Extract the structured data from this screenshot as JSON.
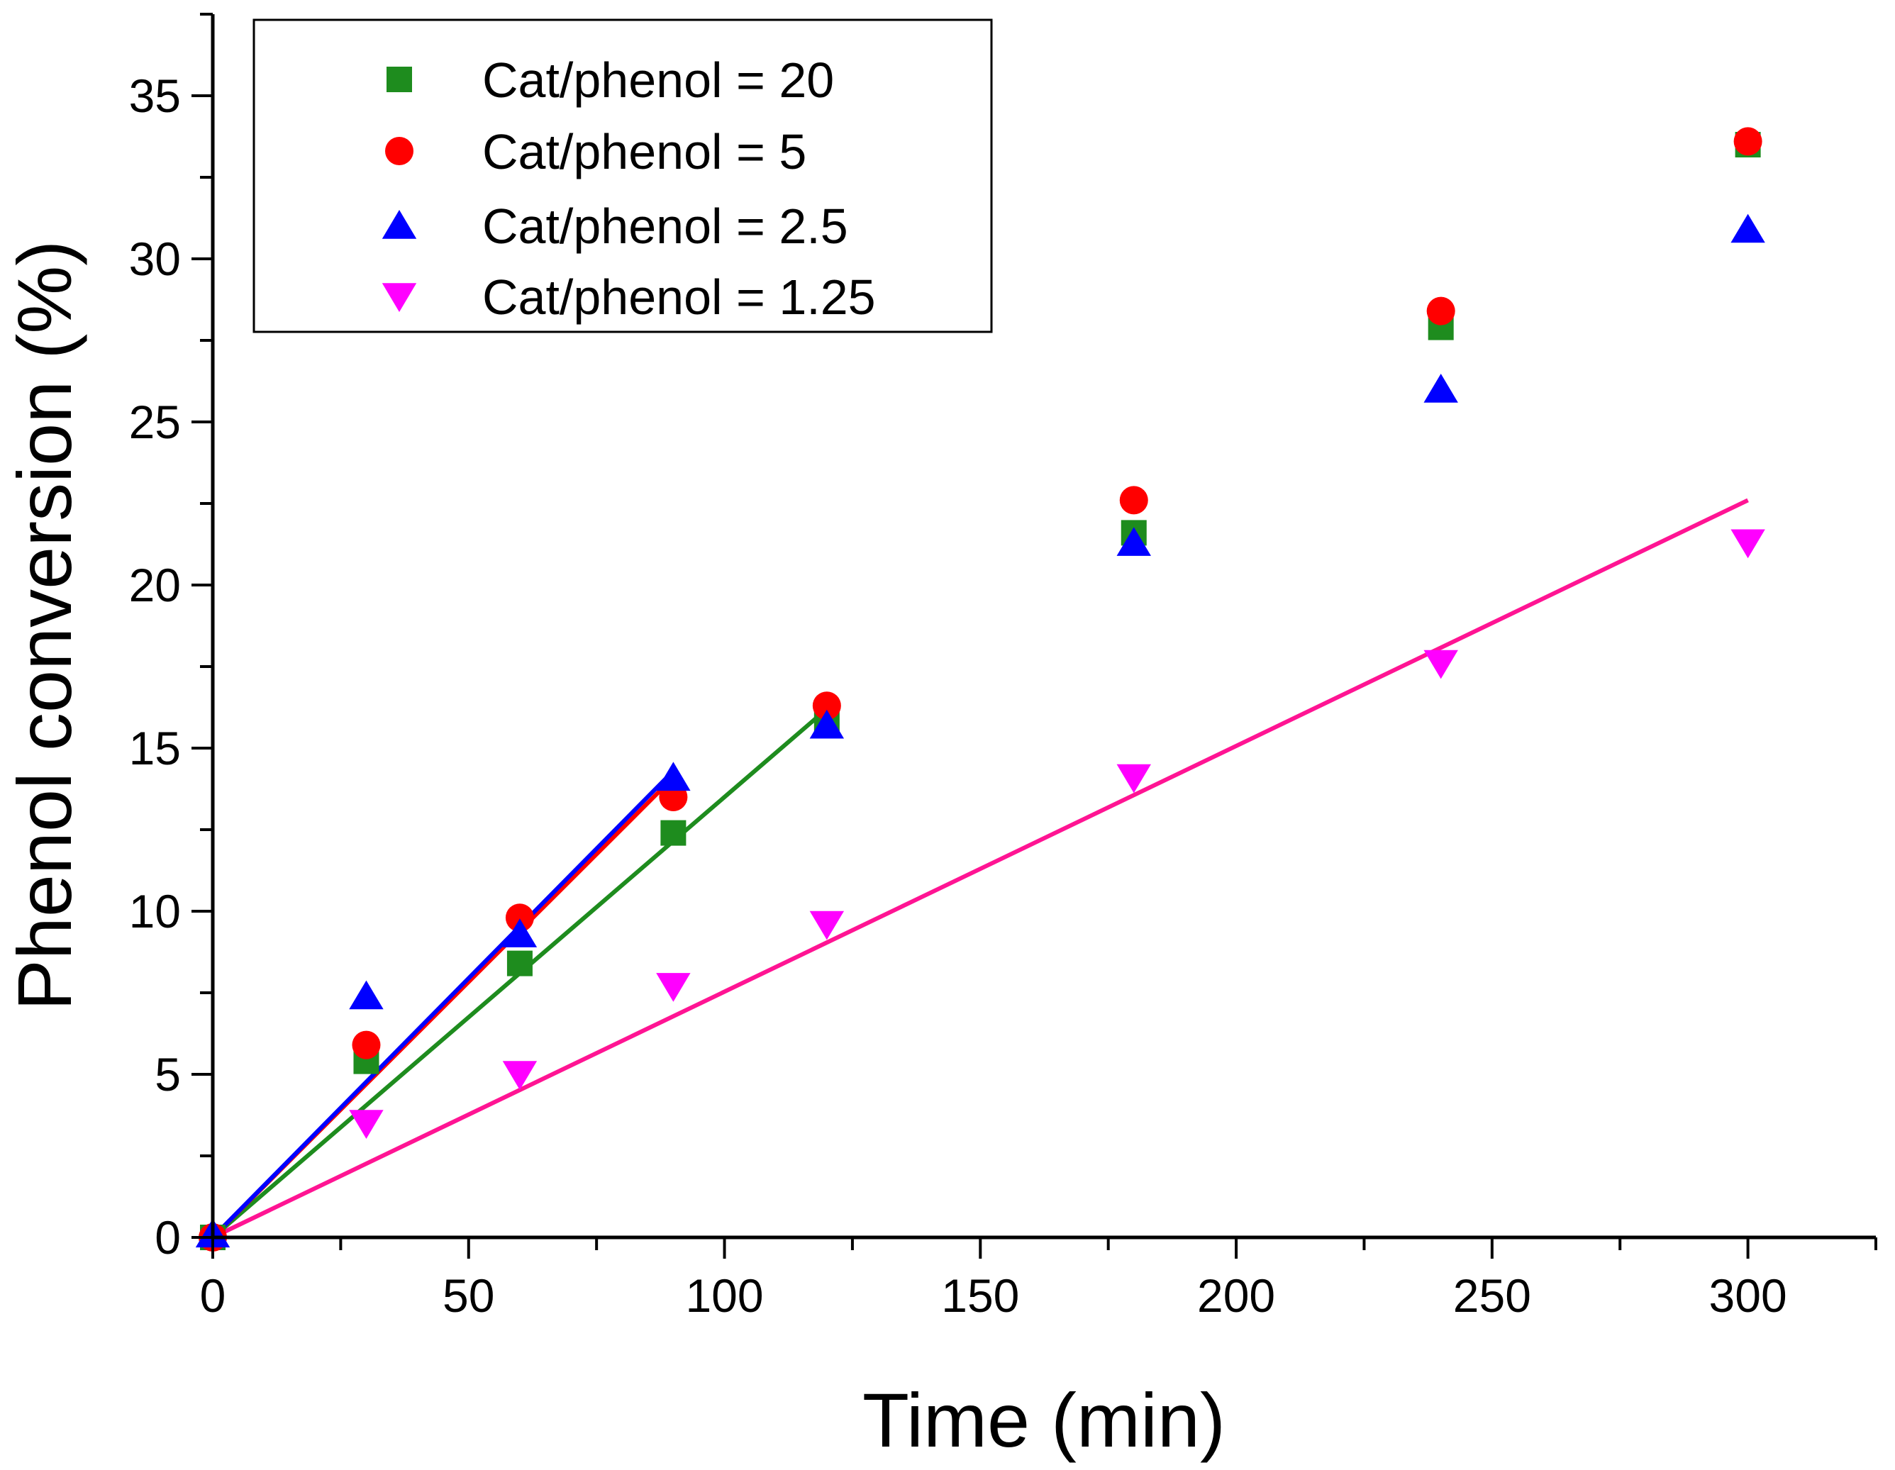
{
  "chart_data": {
    "type": "scatter",
    "xlabel": "Time (min)",
    "ylabel": "Phenol conversion (%)",
    "xlim": [
      0,
      325
    ],
    "ylim": [
      0,
      37.5
    ],
    "x_ticks": [
      0,
      50,
      100,
      150,
      200,
      250,
      300
    ],
    "y_ticks": [
      0,
      5,
      10,
      15,
      20,
      25,
      30,
      35
    ],
    "x_tick_labels": [
      "0",
      "50",
      "100",
      "150",
      "200",
      "250",
      "300"
    ],
    "y_tick_labels": [
      "0",
      "5",
      "10",
      "15",
      "20",
      "25",
      "30",
      "35"
    ],
    "legend_position": "top-left",
    "grid": false,
    "series": [
      {
        "name": "Cat/phenol = 20",
        "marker": "square",
        "color": "#1e8c1e",
        "x": [
          0,
          30,
          60,
          90,
          120,
          180,
          240,
          300
        ],
        "y": [
          0,
          5.4,
          8.4,
          12.4,
          15.8,
          21.6,
          27.9,
          33.5
        ],
        "fit": {
          "color": "#1e8c1e",
          "x": [
            0,
            120
          ],
          "y": [
            0,
            16.2
          ]
        }
      },
      {
        "name": "Cat/phenol = 5",
        "marker": "circle",
        "color": "#ff0000",
        "x": [
          0,
          30,
          60,
          90,
          120,
          180,
          240,
          300
        ],
        "y": [
          0,
          5.9,
          9.8,
          13.5,
          16.3,
          22.6,
          28.4,
          33.6
        ],
        "fit": {
          "color": "#ff0000",
          "x": [
            0,
            90
          ],
          "y": [
            0,
            14.1
          ]
        }
      },
      {
        "name": "Cat/phenol = 2.5",
        "marker": "triangle-up",
        "color": "#0000ff",
        "x": [
          0,
          30,
          60,
          90,
          120,
          180,
          240,
          300
        ],
        "y": [
          0.1,
          7.4,
          9.3,
          14.1,
          15.7,
          21.3,
          26.0,
          30.9
        ],
        "fit": {
          "color": "#0000ff",
          "x": [
            0,
            90
          ],
          "y": [
            0,
            14.3
          ]
        }
      },
      {
        "name": "Cat/phenol = 1.25",
        "marker": "triangle-down",
        "color": "#ff00ff",
        "x": [
          30,
          60,
          90,
          120,
          180,
          240,
          300
        ],
        "y": [
          3.5,
          5.0,
          7.7,
          9.6,
          14.1,
          17.6,
          21.3
        ],
        "fit": {
          "color": "#ff1493",
          "x": [
            0,
            300
          ],
          "y": [
            0,
            22.6
          ]
        }
      }
    ]
  }
}
